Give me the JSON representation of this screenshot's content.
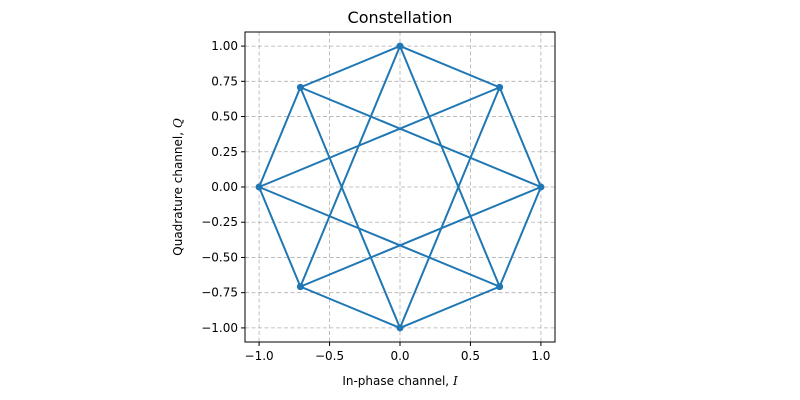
{
  "chart_data": {
    "type": "line",
    "title": "Constellation",
    "xlabel": {
      "text": "In-phase channel, ",
      "symbol": "I"
    },
    "ylabel": {
      "text": "Quadrature channel, ",
      "symbol": "Q"
    },
    "xlim": [
      -1.1,
      1.1
    ],
    "ylim": [
      -1.1,
      1.1
    ],
    "xticks": [
      -1.0,
      -0.5,
      0.0,
      0.5,
      1.0
    ],
    "xtick_labels": [
      "−1.0",
      "−0.5",
      "0.0",
      "0.5",
      "1.0"
    ],
    "yticks": [
      -1.0,
      -0.75,
      -0.5,
      -0.25,
      0.0,
      0.25,
      0.5,
      0.75,
      1.0
    ],
    "ytick_labels": [
      "−1.00",
      "−0.75",
      "−0.50",
      "−0.25",
      "0.00",
      "0.25",
      "0.50",
      "0.75",
      "1.00"
    ],
    "grid": true,
    "grid_style": "dashed",
    "aspect": "equal",
    "line_color": "#1f77b4",
    "marker": "circle",
    "points": [
      {
        "x": 1.0,
        "y": 0.0
      },
      {
        "x": 0.707,
        "y": 0.707
      },
      {
        "x": 0.0,
        "y": 1.0
      },
      {
        "x": -0.707,
        "y": 0.707
      },
      {
        "x": -1.0,
        "y": 0.0
      },
      {
        "x": -0.707,
        "y": -0.707
      },
      {
        "x": 0.0,
        "y": -1.0
      },
      {
        "x": 0.707,
        "y": -0.707
      }
    ],
    "segments": [
      [
        0,
        1
      ],
      [
        1,
        2
      ],
      [
        2,
        3
      ],
      [
        3,
        4
      ],
      [
        4,
        5
      ],
      [
        5,
        6
      ],
      [
        6,
        7
      ],
      [
        7,
        0
      ],
      [
        0,
        3
      ],
      [
        3,
        6
      ],
      [
        6,
        1
      ],
      [
        1,
        4
      ],
      [
        4,
        7
      ],
      [
        7,
        2
      ],
      [
        2,
        5
      ],
      [
        5,
        0
      ]
    ]
  }
}
